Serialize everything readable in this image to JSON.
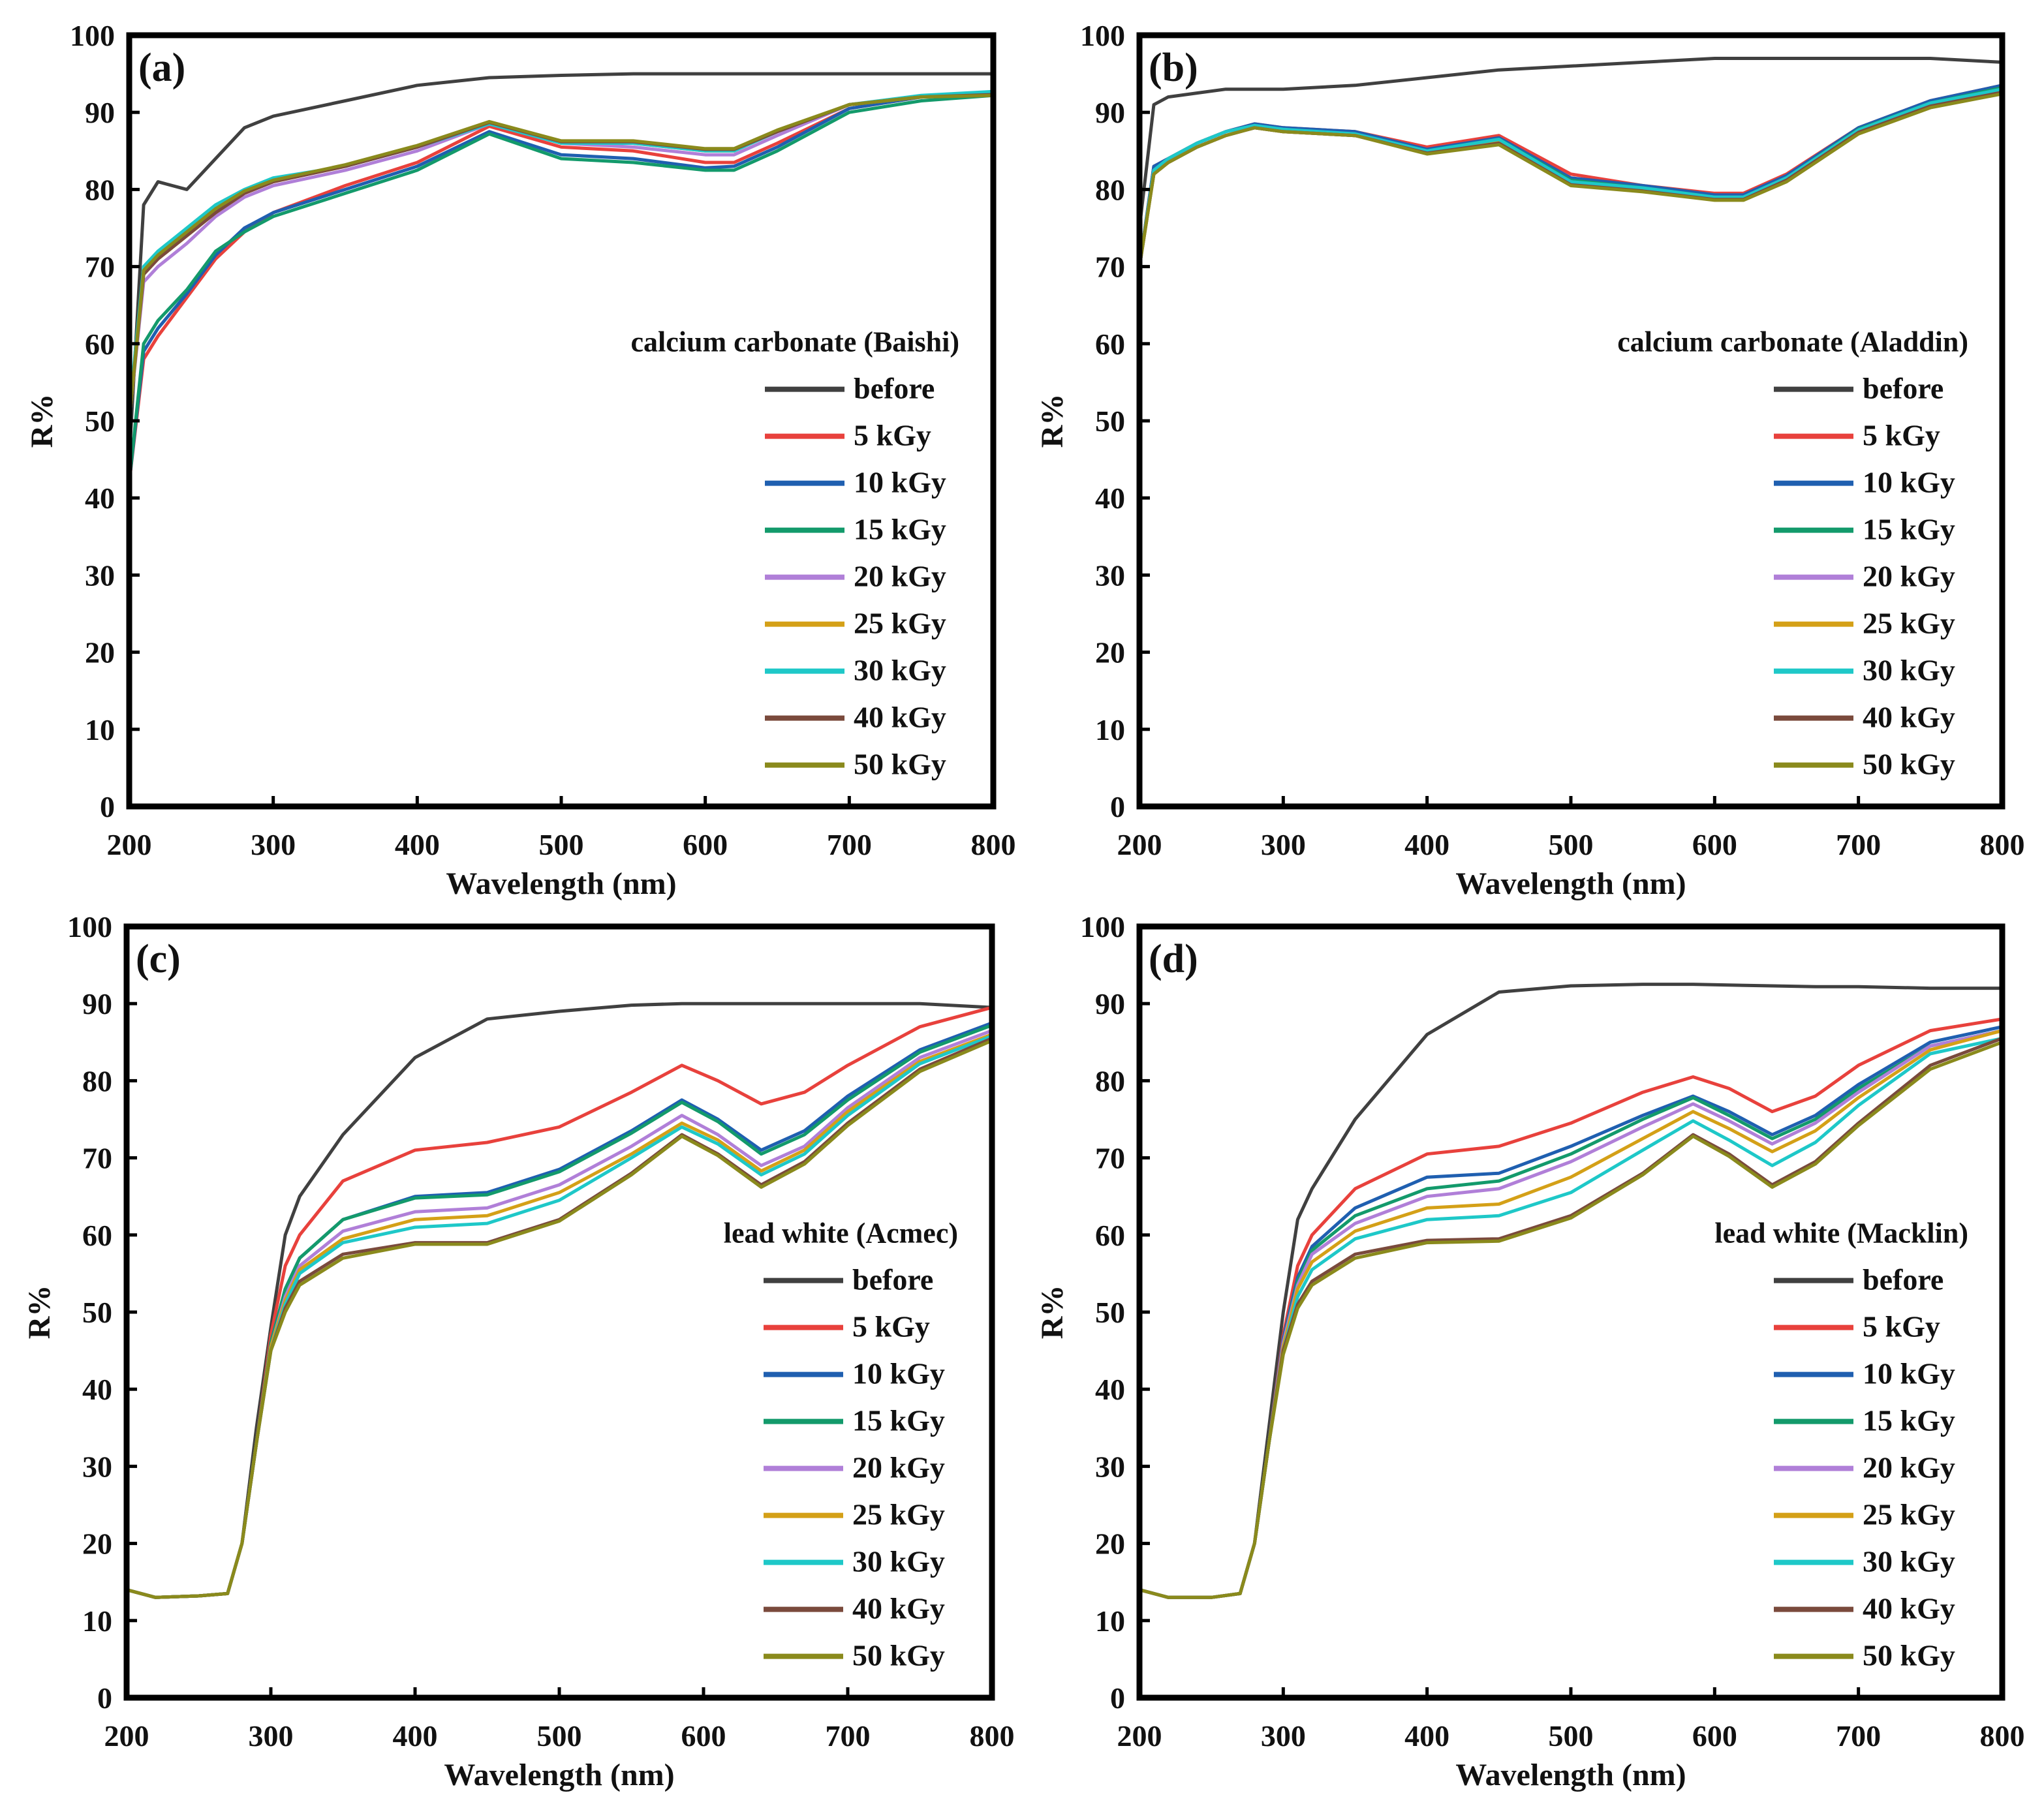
{
  "chart_data": [
    {
      "type": "line",
      "panel_label": "(a)",
      "xlabel": "Wavelength (nm)",
      "ylabel": "R%",
      "xlim": [
        200,
        800
      ],
      "ylim": [
        0,
        100
      ],
      "x_ticks": [
        200,
        300,
        400,
        500,
        600,
        700,
        800
      ],
      "y_ticks": [
        0,
        10,
        20,
        30,
        40,
        50,
        60,
        70,
        80,
        90,
        100
      ],
      "legend_title": "calcium carbonate (Baishi)",
      "legend_position": "center-right",
      "grid": false,
      "x": [
        200,
        210,
        220,
        240,
        260,
        280,
        300,
        350,
        400,
        450,
        500,
        550,
        600,
        620,
        650,
        700,
        750,
        800
      ],
      "series": [
        {
          "name": "before",
          "color": "#404040",
          "values": [
            45,
            78,
            81,
            80,
            84,
            88,
            89.5,
            91.5,
            93.5,
            94.5,
            94.8,
            95,
            95,
            95,
            95,
            95,
            95,
            95
          ]
        },
        {
          "name": "5 kGy",
          "color": "#e8413c",
          "values": [
            42,
            58,
            61,
            66,
            71,
            74.5,
            77,
            80.5,
            83.5,
            88.2,
            85.5,
            85,
            83.5,
            83.5,
            86,
            90.5,
            92,
            92.5
          ]
        },
        {
          "name": "10 kGy",
          "color": "#1f5fb0",
          "values": [
            42,
            59,
            62,
            66.5,
            71.5,
            75,
            77,
            80,
            83,
            87.5,
            84.5,
            84,
            82.8,
            83,
            85.5,
            90.5,
            92,
            92.5
          ]
        },
        {
          "name": "15 kGy",
          "color": "#139a6b",
          "values": [
            42,
            60,
            63,
            67,
            72,
            74.5,
            76.5,
            79.5,
            82.5,
            87.2,
            84,
            83.5,
            82.5,
            82.5,
            85,
            90,
            91.5,
            92.2
          ]
        },
        {
          "name": "20 kGy",
          "color": "#b07fd8",
          "values": [
            50,
            68,
            70,
            73,
            76.5,
            79,
            80.5,
            82.5,
            85,
            88.5,
            86,
            85.5,
            84.5,
            84.5,
            87,
            91,
            92,
            92.5
          ]
        },
        {
          "name": "25 kGy",
          "color": "#d4a017",
          "values": [
            50,
            69,
            71,
            74,
            77,
            79.5,
            81,
            83,
            85.5,
            88.6,
            86,
            86,
            85,
            85,
            87.5,
            91,
            92,
            92.5
          ]
        },
        {
          "name": "30 kGy",
          "color": "#1ec8c8",
          "values": [
            51,
            70,
            72,
            75,
            78,
            80,
            81.5,
            83,
            85.5,
            88.5,
            86,
            86,
            85,
            85,
            87.5,
            91,
            92.2,
            92.7
          ]
        },
        {
          "name": "40 kGy",
          "color": "#7a4a3c",
          "values": [
            50,
            69,
            71,
            74,
            77,
            79.5,
            81,
            83,
            85.5,
            88.7,
            86.2,
            86.2,
            85.2,
            85.2,
            87.5,
            91,
            92,
            92.3
          ]
        },
        {
          "name": "50 kGy",
          "color": "#8a8a1c",
          "values": [
            50,
            69.5,
            71.5,
            74.5,
            77.5,
            79.8,
            81.2,
            83.2,
            85.7,
            88.8,
            86.3,
            86.3,
            85.3,
            85.3,
            87.7,
            91,
            92,
            92.2
          ]
        }
      ]
    },
    {
      "type": "line",
      "panel_label": "(b)",
      "xlabel": "Wavelength (nm)",
      "ylabel": "R%",
      "xlim": [
        200,
        800
      ],
      "ylim": [
        0,
        100
      ],
      "x_ticks": [
        200,
        300,
        400,
        500,
        600,
        700,
        800
      ],
      "y_ticks": [
        0,
        10,
        20,
        30,
        40,
        50,
        60,
        70,
        80,
        90,
        100
      ],
      "legend_title": "calcium carbonate (Aladdin)",
      "legend_position": "center-right",
      "grid": false,
      "x": [
        200,
        210,
        220,
        240,
        260,
        280,
        300,
        350,
        400,
        450,
        500,
        550,
        600,
        620,
        650,
        700,
        750,
        800
      ],
      "series": [
        {
          "name": "before",
          "color": "#404040",
          "values": [
            75,
            91,
            92,
            92.5,
            93,
            93,
            93,
            93.5,
            94.5,
            95.5,
            96,
            96.5,
            97,
            97,
            97,
            97,
            97,
            96.5
          ]
        },
        {
          "name": "5 kGy",
          "color": "#e8413c",
          "values": [
            70,
            83,
            84,
            86,
            87.5,
            88.5,
            88,
            87.5,
            85.5,
            87,
            82,
            80.5,
            79.5,
            79.5,
            82,
            88,
            91.5,
            93.5
          ]
        },
        {
          "name": "10 kGy",
          "color": "#1f5fb0",
          "values": [
            70,
            83,
            84,
            86,
            87.5,
            88.5,
            88,
            87.5,
            85.2,
            86.7,
            81.5,
            80.5,
            79.3,
            79.3,
            81.8,
            88,
            91.5,
            93.5
          ]
        },
        {
          "name": "15 kGy",
          "color": "#139a6b",
          "values": [
            70,
            82.5,
            83.5,
            85.5,
            87,
            88,
            87.5,
            87,
            85,
            86.5,
            81.2,
            80.2,
            79,
            79,
            81.5,
            87.8,
            91.2,
            93.2
          ]
        },
        {
          "name": "20 kGy",
          "color": "#b07fd8",
          "values": [
            70,
            82.5,
            83.5,
            85.5,
            87,
            88,
            87.5,
            87,
            84.8,
            86.3,
            81,
            80,
            79,
            79,
            81.5,
            87.7,
            91,
            93
          ]
        },
        {
          "name": "25 kGy",
          "color": "#d4a017",
          "values": [
            70,
            82,
            83.5,
            85.5,
            87,
            88,
            87.5,
            87,
            84.8,
            86.2,
            80.8,
            80,
            78.8,
            78.8,
            81.3,
            87.5,
            91,
            92.8
          ]
        },
        {
          "name": "30 kGy",
          "color": "#1ec8c8",
          "values": [
            70,
            82.5,
            84,
            86,
            87.5,
            88.3,
            87.8,
            87.2,
            85,
            86.5,
            81,
            80.2,
            79,
            79,
            81.5,
            87.7,
            91.2,
            93
          ]
        },
        {
          "name": "40 kGy",
          "color": "#7a4a3c",
          "values": [
            70,
            82,
            83.5,
            85.5,
            87,
            88,
            87.5,
            87,
            84.7,
            86,
            80.6,
            79.8,
            78.7,
            78.7,
            81.2,
            87.4,
            90.8,
            92.6
          ]
        },
        {
          "name": "50 kGy",
          "color": "#8a8a1c",
          "values": [
            70,
            82,
            83.5,
            85.5,
            87,
            88,
            87.5,
            87,
            84.6,
            85.8,
            80.5,
            79.7,
            78.6,
            78.6,
            81,
            87.2,
            90.6,
            92.4
          ]
        }
      ]
    },
    {
      "type": "line",
      "panel_label": "(c)",
      "xlabel": "Wavelength (nm)",
      "ylabel": "R%",
      "xlim": [
        200,
        800
      ],
      "ylim": [
        0,
        100
      ],
      "x_ticks": [
        200,
        300,
        400,
        500,
        600,
        700,
        800
      ],
      "y_ticks": [
        0,
        10,
        20,
        30,
        40,
        50,
        60,
        70,
        80,
        90,
        100
      ],
      "legend_title": "lead white (Acmec)",
      "legend_position": "center-right",
      "grid": false,
      "x": [
        200,
        220,
        250,
        270,
        280,
        290,
        300,
        310,
        320,
        350,
        400,
        450,
        500,
        550,
        585,
        610,
        640,
        670,
        700,
        750,
        800
      ],
      "series": [
        {
          "name": "before",
          "color": "#404040",
          "values": [
            14,
            13,
            13.2,
            13.5,
            20,
            35,
            48,
            60,
            65,
            73,
            83,
            88,
            89,
            89.8,
            90,
            90,
            90,
            90,
            90,
            90,
            89.5
          ]
        },
        {
          "name": "5 kGy",
          "color": "#e8413c",
          "values": [
            14,
            13,
            13.2,
            13.5,
            20,
            33,
            47,
            56,
            60,
            67,
            71,
            72,
            74,
            78.5,
            82,
            80,
            77,
            78.5,
            82,
            87,
            89.5
          ]
        },
        {
          "name": "10 kGy",
          "color": "#1f5fb0",
          "values": [
            14,
            13,
            13.2,
            13.5,
            20,
            33,
            46,
            53,
            57,
            62,
            65,
            65.5,
            68.5,
            73.5,
            77.5,
            75,
            71,
            73.5,
            78,
            84,
            87.5
          ]
        },
        {
          "name": "15 kGy",
          "color": "#139a6b",
          "values": [
            14,
            13,
            13.2,
            13.5,
            20,
            33,
            46,
            53,
            57,
            62,
            64.8,
            65.2,
            68.2,
            73.2,
            77.2,
            74.7,
            70.5,
            73,
            77.5,
            83.7,
            87.2
          ]
        },
        {
          "name": "20 kGy",
          "color": "#b07fd8",
          "values": [
            14,
            13,
            13.2,
            13.5,
            20,
            33,
            45.5,
            52,
            56,
            60.5,
            63,
            63.5,
            66.5,
            71.5,
            75.5,
            73,
            69,
            71.5,
            76.5,
            83,
            86.5
          ]
        },
        {
          "name": "25 kGy",
          "color": "#d4a017",
          "values": [
            14,
            13,
            13.2,
            13.5,
            20,
            33,
            45.5,
            51.5,
            55.5,
            59.5,
            62,
            62.5,
            65.5,
            70.5,
            74.5,
            72.3,
            68.3,
            71,
            76,
            82.5,
            86
          ]
        },
        {
          "name": "30 kGy",
          "color": "#1ec8c8",
          "values": [
            14,
            13,
            13.2,
            13.5,
            20,
            33,
            45,
            51,
            55,
            59,
            61,
            61.5,
            64.5,
            70,
            74,
            71.8,
            67.8,
            70.5,
            75.5,
            82.2,
            85.8
          ]
        },
        {
          "name": "40 kGy",
          "color": "#7a4a3c",
          "values": [
            14,
            13,
            13.2,
            13.5,
            20,
            33,
            45,
            50.5,
            54,
            57.5,
            59,
            59,
            62,
            68,
            73,
            70.5,
            66.5,
            69.5,
            74.5,
            81.5,
            85.5
          ]
        },
        {
          "name": "50 kGy",
          "color": "#8a8a1c",
          "values": [
            14,
            13,
            13.2,
            13.5,
            20,
            33,
            45,
            50,
            53.5,
            57,
            58.8,
            58.8,
            61.8,
            67.8,
            72.8,
            70.3,
            66.2,
            69.2,
            74.2,
            81.2,
            85.2
          ]
        }
      ]
    },
    {
      "type": "line",
      "panel_label": "(d)",
      "xlabel": "Wavelength (nm)",
      "ylabel": "R%",
      "xlim": [
        200,
        800
      ],
      "ylim": [
        0,
        100
      ],
      "x_ticks": [
        200,
        300,
        400,
        500,
        600,
        700,
        800
      ],
      "y_ticks": [
        0,
        10,
        20,
        30,
        40,
        50,
        60,
        70,
        80,
        90,
        100
      ],
      "legend_title": "lead white (Macklin)",
      "legend_position": "center-right",
      "grid": false,
      "x": [
        200,
        220,
        250,
        270,
        280,
        290,
        300,
        310,
        320,
        350,
        400,
        450,
        500,
        550,
        585,
        610,
        640,
        670,
        700,
        750,
        800
      ],
      "series": [
        {
          "name": "before",
          "color": "#404040",
          "values": [
            14,
            13,
            13,
            13.5,
            20,
            35,
            50,
            62,
            66,
            75,
            86,
            91.5,
            92.3,
            92.5,
            92.5,
            92.4,
            92.3,
            92.2,
            92.2,
            92,
            92
          ]
        },
        {
          "name": "5 kGy",
          "color": "#e8413c",
          "values": [
            14,
            13,
            13,
            13.5,
            20,
            33,
            47,
            56,
            60,
            66,
            70.5,
            71.5,
            74.5,
            78.5,
            80.5,
            79,
            76,
            78,
            82,
            86.5,
            88
          ]
        },
        {
          "name": "10 kGy",
          "color": "#1f5fb0",
          "values": [
            14,
            13,
            13,
            13.5,
            20,
            33,
            46.5,
            54.5,
            58.5,
            63.5,
            67.5,
            68,
            71.5,
            75.5,
            78,
            76,
            73,
            75.5,
            79.5,
            85,
            87
          ]
        },
        {
          "name": "15 kGy",
          "color": "#139a6b",
          "values": [
            14,
            13,
            13,
            13.5,
            20,
            33,
            46,
            54,
            58,
            62.5,
            66,
            67,
            70.5,
            75,
            77.8,
            75.5,
            72.5,
            75,
            79,
            84.5,
            86.5
          ]
        },
        {
          "name": "20 kGy",
          "color": "#b07fd8",
          "values": [
            14,
            13,
            13,
            13.5,
            20,
            33,
            46,
            53.5,
            57.5,
            61.5,
            65,
            66,
            69.5,
            74,
            77,
            74.8,
            71.8,
            74.5,
            78.5,
            84.5,
            86.5
          ]
        },
        {
          "name": "25 kGy",
          "color": "#d4a017",
          "values": [
            14,
            13,
            13,
            13.5,
            20,
            33,
            45.5,
            53,
            56.5,
            60.5,
            63.5,
            64,
            67.5,
            72.5,
            76,
            73.8,
            70.8,
            73.5,
            77.8,
            84,
            86.5
          ]
        },
        {
          "name": "30 kGy",
          "color": "#1ec8c8",
          "values": [
            14,
            13,
            13,
            13.5,
            20,
            33,
            45,
            52,
            55.5,
            59.5,
            62,
            62.5,
            65.5,
            71,
            74.8,
            72.3,
            69,
            72,
            76.8,
            83.5,
            85.5
          ]
        },
        {
          "name": "40 kGy",
          "color": "#7a4a3c",
          "values": [
            14,
            13,
            13,
            13.5,
            20,
            33,
            45,
            51,
            54,
            57.5,
            59.3,
            59.5,
            62.5,
            68,
            73,
            70.5,
            66.5,
            69.5,
            74.5,
            82,
            85.5
          ]
        },
        {
          "name": "50 kGy",
          "color": "#8a8a1c",
          "values": [
            14,
            13,
            13,
            13.5,
            20,
            33,
            44.5,
            50.5,
            53.5,
            57,
            59,
            59.2,
            62.2,
            67.8,
            72.8,
            70.2,
            66.2,
            69.2,
            74.2,
            81.5,
            85
          ]
        }
      ]
    }
  ]
}
